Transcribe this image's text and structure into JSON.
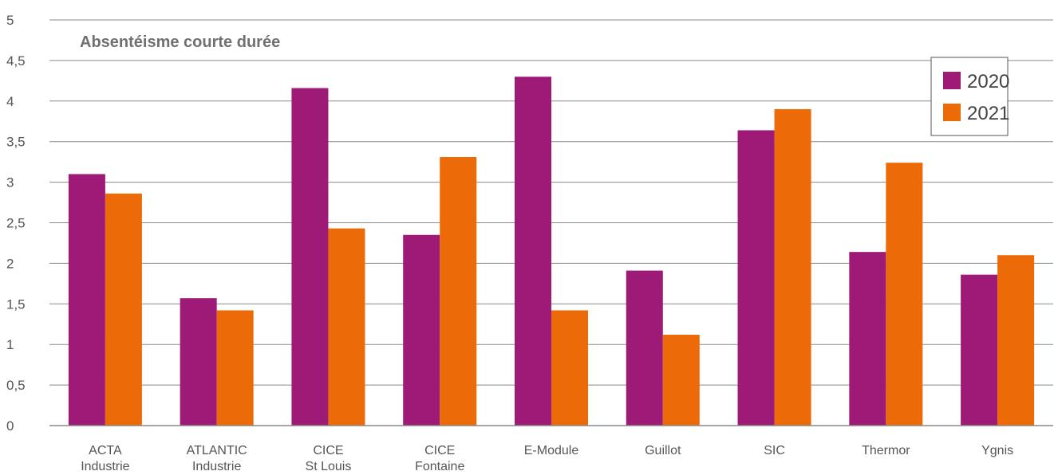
{
  "chart_data": {
    "type": "bar",
    "title": "Absentéisme courte durée",
    "xlabel": "",
    "ylabel": "",
    "ylim": [
      0,
      5
    ],
    "yticks": [
      "0",
      "0,5",
      "1",
      "1,5",
      "2",
      "2,5",
      "3",
      "3,5",
      "4",
      "4,5",
      "5"
    ],
    "grid": true,
    "legend_position": "top-right",
    "categories": [
      [
        "ACTA",
        "Industrie"
      ],
      [
        "ATLANTIC",
        "Industrie"
      ],
      [
        "CICE",
        "St Louis"
      ],
      [
        "CICE",
        "Fontaine"
      ],
      [
        "E-Module"
      ],
      [
        "Guillot"
      ],
      [
        "SIC"
      ],
      [
        "Thermor"
      ],
      [
        "Ygnis"
      ]
    ],
    "series": [
      {
        "name": "2020",
        "color": "#9e1a77",
        "values": [
          3.1,
          1.57,
          4.16,
          2.35,
          4.3,
          1.91,
          3.64,
          2.14,
          1.86
        ]
      },
      {
        "name": "2021",
        "color": "#ec6a08",
        "values": [
          2.86,
          1.42,
          2.43,
          3.31,
          1.42,
          1.12,
          3.9,
          3.24,
          2.1
        ]
      }
    ]
  }
}
